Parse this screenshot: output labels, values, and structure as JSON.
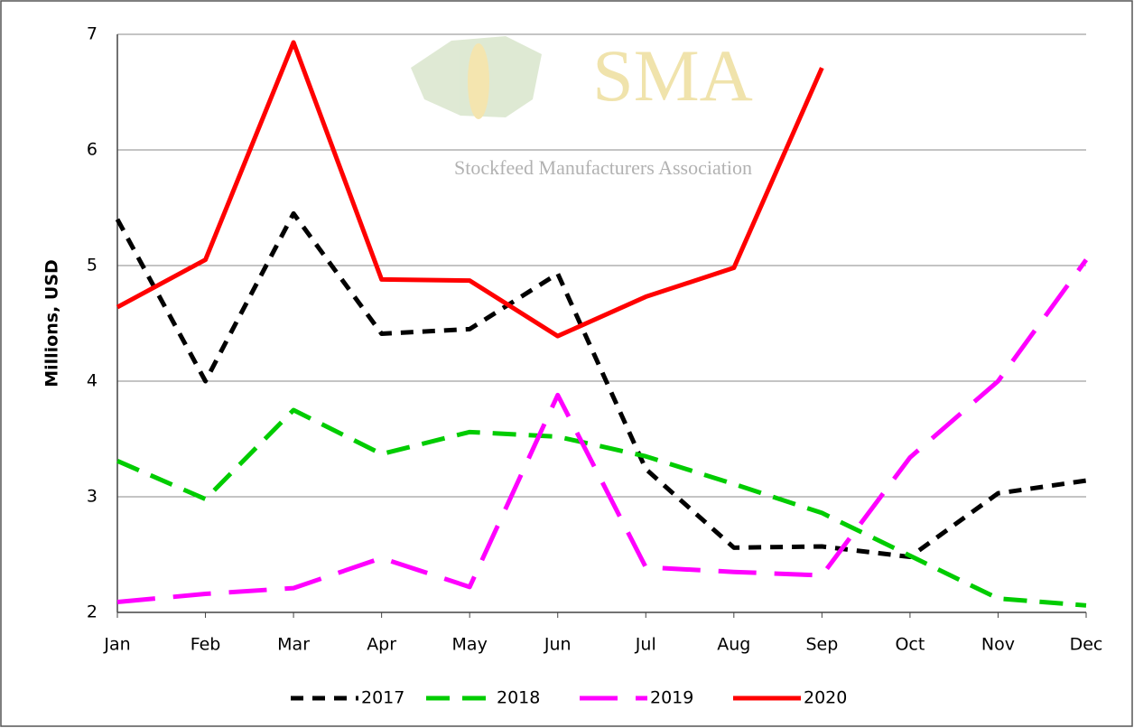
{
  "chart_data": {
    "type": "line",
    "y_label": "Millions, USD",
    "watermark_title": "SMA",
    "watermark_subtitle": "Stockfeed Manufacturers Association",
    "categories": [
      "Jan",
      "Feb",
      "Mar",
      "Apr",
      "May",
      "Jun",
      "Jul",
      "Aug",
      "Sep",
      "Oct",
      "Nov",
      "Dec"
    ],
    "series": [
      {
        "name": "2017",
        "color": "#000000",
        "values": [
          5.4,
          4.0,
          5.45,
          4.41,
          4.45,
          4.93,
          3.24,
          2.56,
          2.57,
          2.48,
          3.03,
          3.14
        ]
      },
      {
        "name": "2018",
        "color": "#00cc00",
        "values": [
          3.31,
          2.98,
          3.75,
          3.37,
          3.56,
          3.52,
          3.35,
          3.11,
          2.86,
          2.49,
          2.12,
          2.06
        ]
      },
      {
        "name": "2019",
        "color": "#ff00ff",
        "values": [
          2.09,
          2.16,
          2.21,
          2.47,
          2.22,
          3.88,
          2.39,
          2.35,
          2.32,
          3.34,
          4.0,
          5.05
        ]
      },
      {
        "name": "2020",
        "color": "#ff0000",
        "values": [
          4.64,
          5.05,
          6.93,
          4.88,
          4.87,
          4.39,
          4.73,
          4.98,
          6.71,
          null,
          null,
          null
        ]
      }
    ],
    "ylim": [
      2,
      7
    ],
    "yticks": [
      2,
      3,
      4,
      5,
      6,
      7
    ],
    "grid": true,
    "legend": "bottom"
  }
}
